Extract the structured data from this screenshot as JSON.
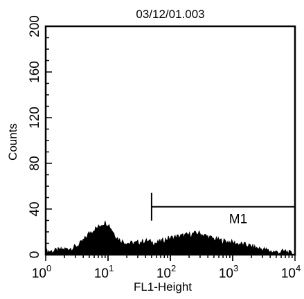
{
  "chart_data": {
    "type": "area",
    "title": "03/12/01.003",
    "xlabel": "FL1-Height",
    "ylabel": "Counts",
    "x_scale": "log",
    "xlim": [
      1,
      10000
    ],
    "ylim": [
      0,
      200
    ],
    "y_ticks": [
      "0",
      "40",
      "80",
      "120",
      "160",
      "200"
    ],
    "x_ticks": [
      {
        "base": "10",
        "exp": "0"
      },
      {
        "base": "10",
        "exp": "1"
      },
      {
        "base": "10",
        "exp": "2"
      },
      {
        "base": "10",
        "exp": "3"
      },
      {
        "base": "10",
        "exp": "4"
      }
    ],
    "histogram": {
      "x": [
        1,
        1.3,
        1.7,
        2.2,
        2.8,
        3.5,
        4.3,
        5,
        6,
        7,
        8,
        9,
        10,
        11.5,
        13,
        15,
        18,
        22,
        27,
        33,
        40,
        50,
        60,
        75,
        90,
        110,
        140,
        180,
        230,
        280,
        350,
        430,
        550,
        700,
        900,
        1100,
        1400,
        1800,
        2300,
        3000,
        4000,
        5500,
        7000,
        8500,
        10000
      ],
      "y": [
        3,
        3,
        4,
        5,
        6,
        9,
        14,
        19,
        22,
        24,
        27,
        28,
        27,
        22,
        17,
        13,
        11,
        10,
        10,
        11,
        12,
        11,
        10,
        12,
        14,
        15,
        16,
        17,
        18,
        19,
        17,
        15,
        13,
        12,
        11,
        10,
        9,
        8,
        6,
        5,
        3,
        2,
        3,
        1,
        0
      ]
    },
    "marker": {
      "label": "M1",
      "x_range": [
        50,
        10000
      ],
      "y": 42
    }
  }
}
